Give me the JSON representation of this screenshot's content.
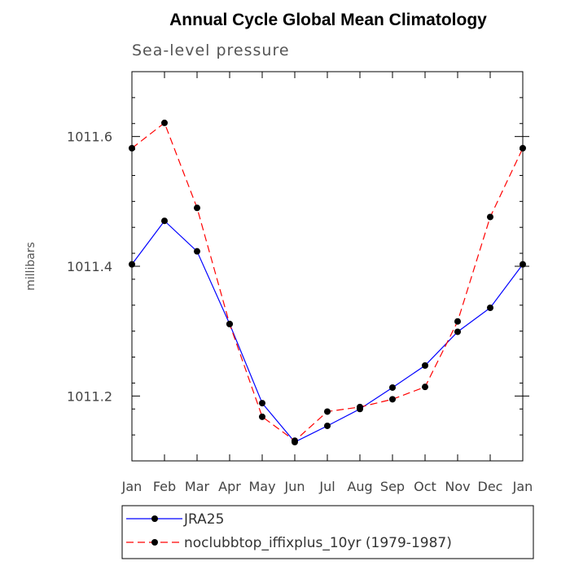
{
  "chart_data": {
    "type": "line",
    "title": "Annual Cycle Global Mean Climatology",
    "subtitle": "Sea-level pressure",
    "xlabel": "",
    "ylabel": "millibars",
    "categories": [
      "Jan",
      "Feb",
      "Mar",
      "Apr",
      "May",
      "Jun",
      "Jul",
      "Aug",
      "Sep",
      "Oct",
      "Nov",
      "Dec",
      "Jan"
    ],
    "ylim": [
      1011.1,
      1011.7
    ],
    "yticks": [
      "1011.2",
      "1011.4",
      "1011.6"
    ],
    "series": [
      {
        "name": "JRA25",
        "color": "#0000ff",
        "dash": "solid",
        "values": [
          1011.403,
          1011.47,
          1011.423,
          1011.311,
          1011.189,
          1011.129,
          1011.154,
          1011.18,
          1011.213,
          1011.247,
          1011.299,
          1011.336,
          1011.403
        ]
      },
      {
        "name": "noclubbtop_iffixplus_10yr (1979-1987)",
        "color": "#ff0000",
        "dash": "dashed",
        "values": [
          1011.582,
          1011.621,
          1011.49,
          1011.311,
          1011.168,
          1011.131,
          1011.176,
          1011.183,
          1011.195,
          1011.214,
          1011.315,
          1011.476,
          1011.582
        ]
      }
    ],
    "legend_position": "bottom"
  }
}
